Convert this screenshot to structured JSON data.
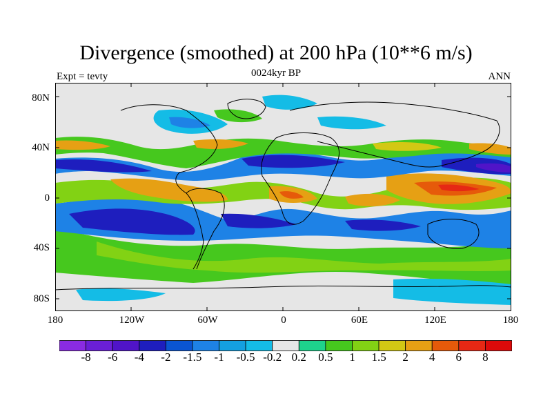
{
  "title": "Divergence (smoothed) at 200 hPa (10**6 m/s)",
  "subtitle_left": "Expt = tevty",
  "subtitle_center": "0024kyr BP",
  "subtitle_right": "ANN",
  "y_ticks": [
    "80N",
    "40N",
    "0",
    "40S",
    "80S"
  ],
  "x_ticks": [
    "180",
    "120W",
    "60W",
    "0",
    "60E",
    "120E",
    "180"
  ],
  "colorbar": {
    "labels": [
      "-8",
      "-6",
      "-4",
      "-2",
      "-1.5",
      "-1",
      "-0.5",
      "-0.2",
      "0.2",
      "0.5",
      "1",
      "1.5",
      "2",
      "4",
      "6",
      "8"
    ],
    "colors": [
      "#8a2be2",
      "#6a1fd6",
      "#5014c8",
      "#1e1ebe",
      "#0a55d2",
      "#1e82e6",
      "#14a0e0",
      "#14bce6",
      "#e6e6e6",
      "#1ed28c",
      "#46c81e",
      "#82d214",
      "#d2c814",
      "#e6a014",
      "#e65a0a",
      "#e62814",
      "#dc0a0a"
    ]
  },
  "colors": {
    "land_outline": "#000000",
    "neutral": "#e6e6e6"
  }
}
